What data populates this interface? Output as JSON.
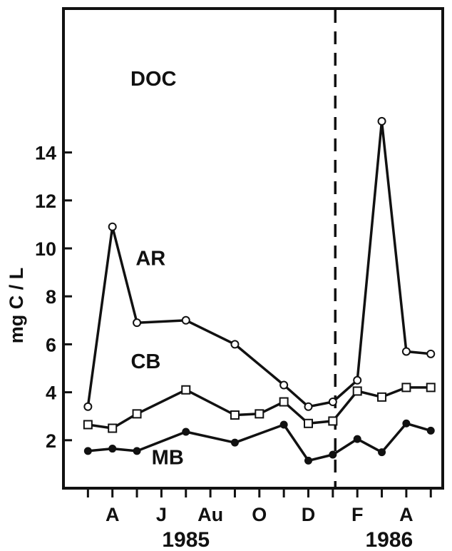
{
  "chart_data": {
    "type": "line",
    "title": "DOC",
    "ylabel": "mg C / L",
    "xlabel": "",
    "ylim": [
      0,
      20
    ],
    "yticks": [
      2,
      4,
      6,
      8,
      10,
      12,
      14
    ],
    "x_month_labels": [
      "A",
      "J",
      "Au",
      "O",
      "D",
      "F",
      "A"
    ],
    "x_month_positions": [
      2,
      4,
      6,
      8,
      10,
      12,
      14
    ],
    "year_labels": [
      "1985",
      "1986"
    ],
    "year_positions": [
      5,
      13.3
    ],
    "xlim": [
      0,
      15.5
    ],
    "year_divider_x": 11.1,
    "grid": false,
    "legend": "inline labels",
    "series": [
      {
        "name": "AR",
        "marker": "open-circle",
        "points": [
          [
            1,
            3.4
          ],
          [
            2,
            10.9
          ],
          [
            3,
            6.9
          ],
          [
            5,
            7.0
          ],
          [
            7,
            6.0
          ],
          [
            9,
            4.3
          ],
          [
            10,
            3.4
          ],
          [
            11,
            3.6
          ],
          [
            12,
            4.5
          ],
          [
            13,
            15.3
          ],
          [
            14,
            5.7
          ],
          [
            15,
            5.6
          ]
        ]
      },
      {
        "name": "CB",
        "marker": "open-square",
        "points": [
          [
            1,
            2.65
          ],
          [
            2,
            2.5
          ],
          [
            3,
            3.1
          ],
          [
            5,
            4.1
          ],
          [
            7,
            3.05
          ],
          [
            8,
            3.1
          ],
          [
            9,
            3.6
          ],
          [
            10,
            2.7
          ],
          [
            11,
            2.8
          ],
          [
            12,
            4.05
          ],
          [
            13,
            3.8
          ],
          [
            14,
            4.2
          ],
          [
            15,
            4.2
          ]
        ]
      },
      {
        "name": "MB",
        "marker": "filled-circle",
        "points": [
          [
            1,
            1.55
          ],
          [
            2,
            1.65
          ],
          [
            3,
            1.55
          ],
          [
            5,
            2.35
          ],
          [
            7,
            1.9
          ],
          [
            9,
            2.65
          ],
          [
            10,
            1.15
          ],
          [
            11,
            1.4
          ],
          [
            12,
            2.05
          ],
          [
            13,
            1.5
          ],
          [
            14,
            2.7
          ],
          [
            15,
            2.4
          ]
        ]
      }
    ],
    "series_label_anchor": {
      "AR": [
        2.95,
        9.3
      ],
      "CB": [
        2.75,
        5.0
      ],
      "MB": [
        3.6,
        1.0
      ]
    }
  }
}
